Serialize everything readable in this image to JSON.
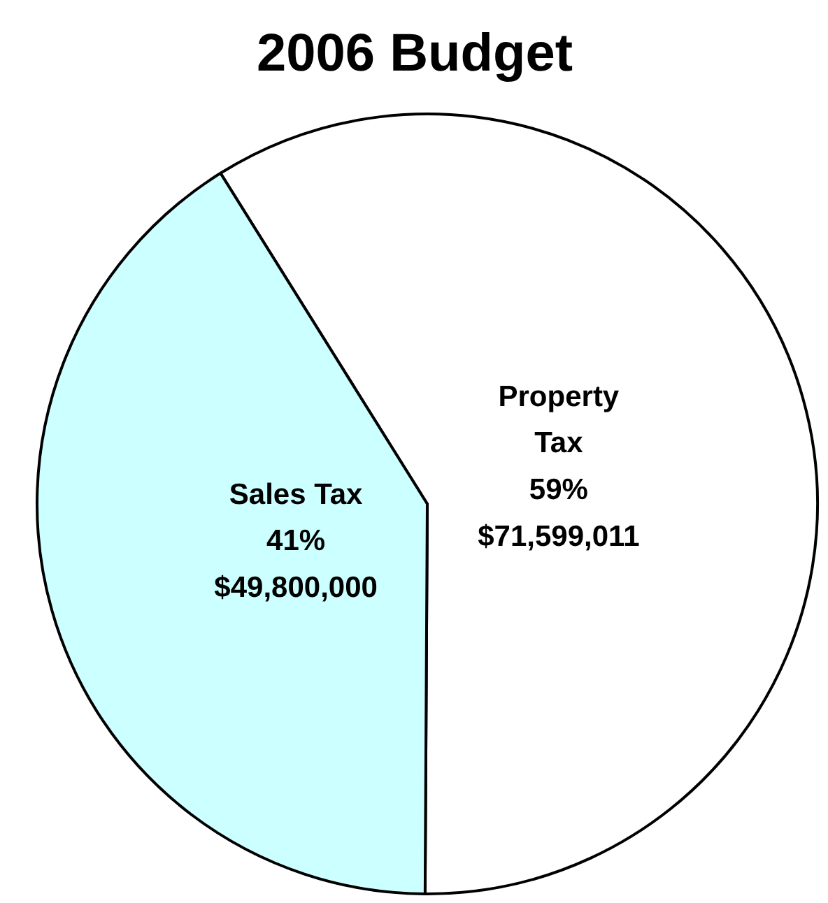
{
  "chart_data": {
    "type": "pie",
    "title": "2006 Budget",
    "categories": [
      "Property Tax",
      "Sales Tax"
    ],
    "values": [
      71599011,
      49800000
    ],
    "colors": [
      "#ffffff",
      "#ccffff"
    ],
    "value_labels": [
      "59%\n$71,599,011",
      "41%\n$49,800,000"
    ]
  }
}
